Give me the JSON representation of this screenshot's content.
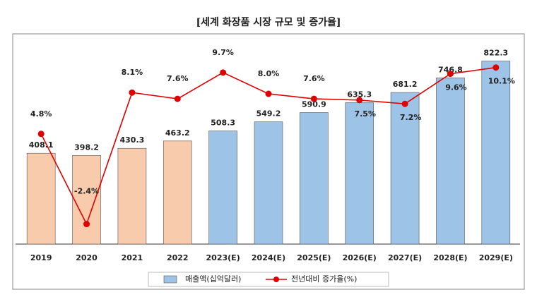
{
  "chart_data": {
    "type": "bar-line",
    "title": "[세계 화장품 시장 규모 및 증가율]",
    "categories": [
      "2019",
      "2020",
      "2021",
      "2022",
      "2023(E)",
      "2024(E)",
      "2025(E)",
      "2026(E)",
      "2027(E)",
      "2028(E)",
      "2029(E)"
    ],
    "ylim": [
      0,
      900
    ],
    "y2lim": [
      -4,
      12
    ],
    "legend": "bottom",
    "series": [
      {
        "name": "매출액(십억달러)",
        "type": "bar",
        "color": "#9dc3e6",
        "colors": [
          "#f8cbad",
          "#f8cbad",
          "#f8cbad",
          "#f8cbad",
          "#9dc3e6",
          "#9dc3e6",
          "#9dc3e6",
          "#9dc3e6",
          "#9dc3e6",
          "#9dc3e6",
          "#9dc3e6"
        ],
        "values": [
          408.1,
          398.2,
          430.3,
          463.2,
          508.3,
          549.2,
          590.9,
          635.3,
          681.2,
          746.8,
          822.3
        ]
      },
      {
        "name": "전년대비 증가율(%)",
        "type": "line",
        "axis": "y2",
        "color": "#e00000",
        "values": [
          4.8,
          -2.4,
          8.1,
          7.6,
          9.7,
          8.0,
          7.6,
          7.5,
          7.2,
          9.6,
          10.1
        ],
        "value_labels": [
          "4.8%",
          "-2.4%",
          "8.1%",
          "7.6%",
          "9.7%",
          "8.0%",
          "7.6%",
          "7.5%",
          "7.2%",
          "9.6%",
          "10.1%"
        ]
      }
    ]
  }
}
